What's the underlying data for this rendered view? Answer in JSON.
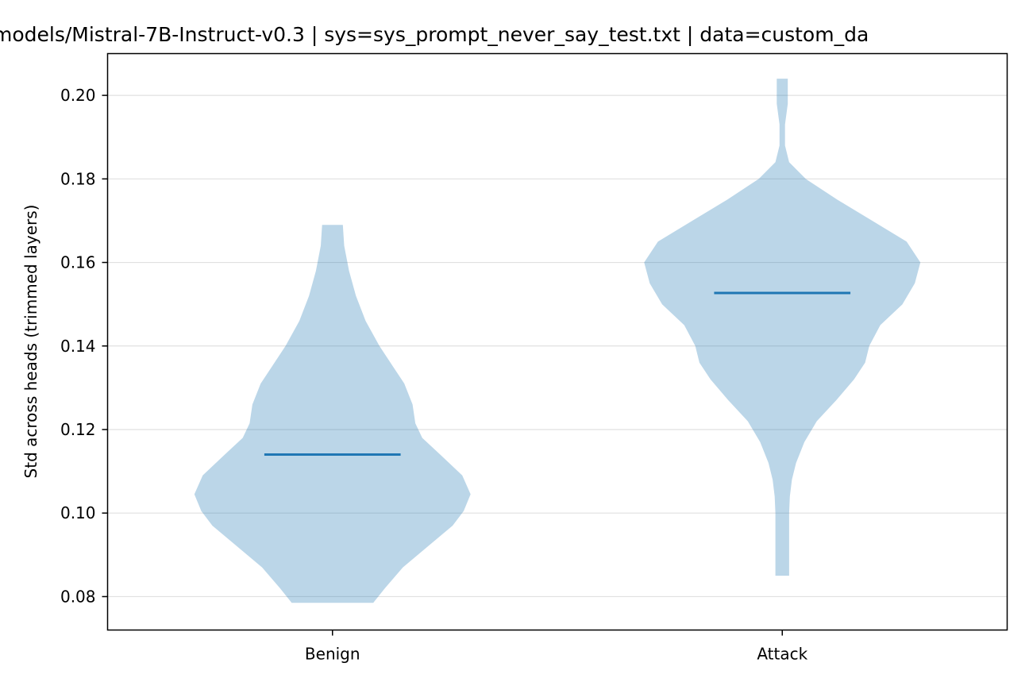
{
  "chart_data": {
    "type": "violin",
    "title": "models/Mistral-7B-Instruct-v0.3 | sys=sys_prompt_never_say_test.txt | data=custom_da",
    "xlabel": "",
    "ylabel": "Std across heads (trimmed layers)",
    "ylim": [
      0.072,
      0.21
    ],
    "yticks": [
      "0.08",
      "0.10",
      "0.12",
      "0.14",
      "0.16",
      "0.18",
      "0.20"
    ],
    "grid": "horizontal",
    "categories": [
      "Benign",
      "Attack"
    ],
    "colors": {
      "violin": "#1f77b4",
      "median": "#1f77b4",
      "grid": "#e0e0e0"
    },
    "series": [
      {
        "category": "Benign",
        "median": 0.114,
        "min": 0.0785,
        "max": 0.169,
        "profile": [
          [
            0.0785,
            0.295
          ],
          [
            0.082,
            0.38
          ],
          [
            0.087,
            0.51
          ],
          [
            0.092,
            0.69
          ],
          [
            0.097,
            0.87
          ],
          [
            0.1005,
            0.95
          ],
          [
            0.1045,
            1.0
          ],
          [
            0.109,
            0.94
          ],
          [
            0.114,
            0.78
          ],
          [
            0.118,
            0.65
          ],
          [
            0.1215,
            0.6
          ],
          [
            0.126,
            0.58
          ],
          [
            0.131,
            0.52
          ],
          [
            0.135,
            0.44
          ],
          [
            0.14,
            0.34
          ],
          [
            0.146,
            0.24
          ],
          [
            0.152,
            0.17
          ],
          [
            0.158,
            0.12
          ],
          [
            0.164,
            0.085
          ],
          [
            0.169,
            0.075
          ]
        ]
      },
      {
        "category": "Attack",
        "median": 0.1527,
        "min": 0.085,
        "max": 0.204,
        "profile": [
          [
            0.085,
            0.05
          ],
          [
            0.09,
            0.05
          ],
          [
            0.1,
            0.05
          ],
          [
            0.104,
            0.055
          ],
          [
            0.108,
            0.07
          ],
          [
            0.112,
            0.1
          ],
          [
            0.117,
            0.16
          ],
          [
            0.122,
            0.25
          ],
          [
            0.127,
            0.39
          ],
          [
            0.132,
            0.52
          ],
          [
            0.136,
            0.6
          ],
          [
            0.14,
            0.63
          ],
          [
            0.145,
            0.71
          ],
          [
            0.15,
            0.87
          ],
          [
            0.155,
            0.96
          ],
          [
            0.16,
            1.0
          ],
          [
            0.165,
            0.9
          ],
          [
            0.17,
            0.65
          ],
          [
            0.175,
            0.4
          ],
          [
            0.18,
            0.17
          ],
          [
            0.184,
            0.05
          ],
          [
            0.188,
            0.02
          ],
          [
            0.193,
            0.02
          ],
          [
            0.198,
            0.04
          ],
          [
            0.204,
            0.04
          ]
        ]
      }
    ]
  }
}
